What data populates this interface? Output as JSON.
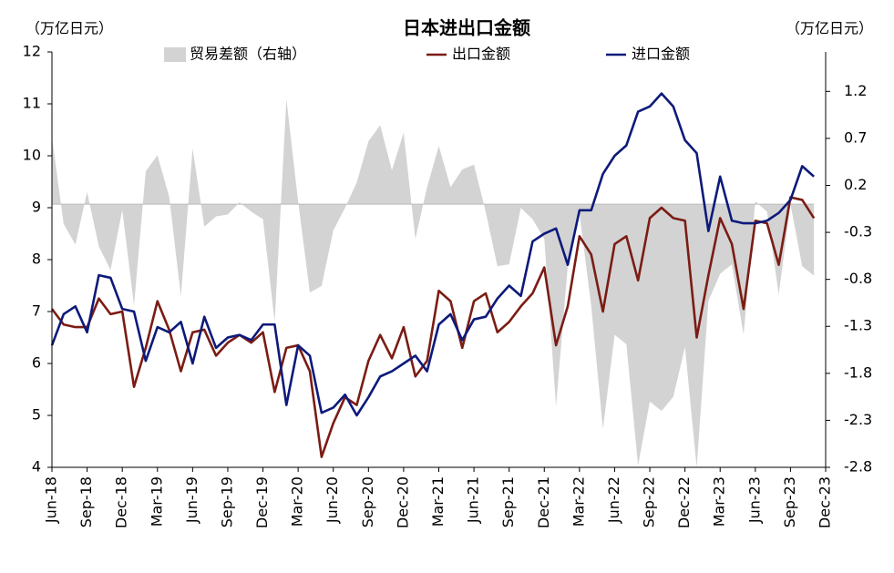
{
  "chart_data": {
    "type": "line",
    "title": "日本进出口金额",
    "y_label": "（万亿日元）",
    "y2_label": "（万亿日元）",
    "categories": [
      "Jun-18",
      null,
      null,
      "Sep-18",
      null,
      null,
      "Dec-18",
      null,
      null,
      "Mar-19",
      null,
      null,
      "Jun-19",
      null,
      null,
      "Sep-19",
      null,
      null,
      "Dec-19",
      null,
      null,
      "Mar-20",
      null,
      null,
      "Jun-20",
      null,
      null,
      "Sep-20",
      null,
      null,
      "Dec-20",
      null,
      null,
      "Mar-21",
      null,
      null,
      "Jun-21",
      null,
      null,
      "Sep-21",
      null,
      null,
      "Dec-21",
      null,
      null,
      "Mar-22",
      null,
      null,
      "Jun-22",
      null,
      null,
      "Sep-22",
      null,
      null,
      "Dec-22",
      null,
      null,
      "Mar-23",
      null,
      null,
      "Jun-23",
      null,
      null,
      "Sep-23",
      null,
      null,
      "Dec-23"
    ],
    "series": [
      {
        "name": "贸易差额（右轴）",
        "type": "area",
        "axis": "y2",
        "color": "#d3d3d3",
        "values": [
          0.71,
          -0.21,
          -0.43,
          0.13,
          -0.45,
          -0.7,
          -0.06,
          -1.08,
          0.35,
          0.52,
          0.08,
          -0.98,
          0.59,
          -0.24,
          -0.13,
          -0.11,
          0.02,
          -0.08,
          -0.16,
          -1.25,
          1.12,
          0.03,
          -0.94,
          -0.87,
          -0.28,
          -0.04,
          0.23,
          0.67,
          0.84,
          0.36,
          0.76,
          -0.37,
          0.18,
          0.62,
          0.18,
          0.37,
          0.42,
          -0.08,
          -0.66,
          -0.64,
          -0.04,
          -0.16,
          -0.37,
          -2.15,
          -0.66,
          -0.1,
          -1.08,
          -2.39,
          -1.39,
          -1.49,
          -2.78,
          -2.1,
          -2.2,
          -2.05,
          -1.52,
          -2.8,
          -1.03,
          -0.74,
          -0.64,
          -1.39,
          0.03,
          -0.08,
          -0.96,
          0.0,
          -0.66,
          -0.76,
          null
        ]
      },
      {
        "name": "出口金额",
        "type": "line",
        "color": "#7b1c14",
        "values": [
          7.05,
          6.75,
          6.7,
          6.7,
          7.25,
          6.95,
          7.0,
          5.55,
          6.3,
          7.2,
          6.65,
          5.85,
          6.6,
          6.65,
          6.15,
          6.4,
          6.55,
          6.4,
          6.6,
          5.45,
          6.3,
          6.35,
          5.85,
          4.2,
          4.85,
          5.35,
          5.2,
          6.05,
          6.55,
          6.1,
          6.7,
          5.75,
          6.05,
          7.4,
          7.2,
          6.3,
          7.2,
          7.35,
          6.6,
          6.8,
          7.1,
          7.35,
          7.85,
          6.35,
          7.1,
          8.45,
          8.1,
          7.0,
          8.3,
          8.45,
          7.6,
          8.8,
          9.0,
          8.8,
          8.75,
          6.5,
          7.7,
          8.8,
          8.3,
          7.05,
          8.75,
          8.7,
          7.9,
          9.2,
          9.15,
          8.8,
          null
        ]
      },
      {
        "name": "进口金额",
        "type": "line",
        "color": "#0d1a7a",
        "values": [
          6.35,
          6.95,
          7.1,
          6.6,
          7.7,
          7.65,
          7.05,
          7.0,
          6.05,
          6.7,
          6.6,
          6.8,
          6.0,
          6.9,
          6.3,
          6.5,
          6.55,
          6.45,
          6.75,
          6.75,
          5.2,
          6.35,
          6.15,
          5.05,
          5.15,
          5.4,
          5.0,
          5.35,
          5.75,
          5.85,
          6.0,
          6.15,
          5.85,
          6.75,
          6.95,
          6.45,
          6.85,
          6.9,
          7.25,
          7.5,
          7.3,
          8.35,
          8.5,
          8.6,
          7.9,
          8.95,
          8.95,
          9.65,
          10.0,
          10.2,
          10.85,
          10.95,
          11.2,
          10.95,
          10.3,
          10.05,
          8.55,
          9.6,
          8.75,
          8.7,
          8.7,
          8.75,
          8.9,
          9.15,
          9.8,
          9.6,
          null
        ]
      }
    ],
    "ylim": [
      4,
      12
    ],
    "yticks": [
      4,
      5,
      6,
      7,
      8,
      9,
      10,
      11,
      12
    ],
    "y2lim": [
      -2.8,
      1.62
    ],
    "y2ticks": [
      1.2,
      0.7,
      0.2,
      -0.3,
      -0.8,
      -1.3,
      -1.8,
      -2.3,
      -2.8
    ],
    "grid": false,
    "legend": "top"
  }
}
